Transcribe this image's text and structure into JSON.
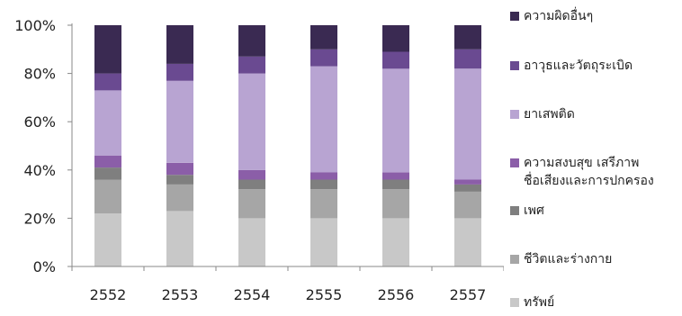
{
  "chart_data": {
    "type": "bar",
    "stacked": true,
    "percent": true,
    "categories": [
      "2552",
      "2553",
      "2554",
      "2555",
      "2556",
      "2557"
    ],
    "ylim": [
      0,
      100
    ],
    "yticks": [
      "0%",
      "20%",
      "40%",
      "60%",
      "80%",
      "100%"
    ],
    "grid": false,
    "legend_position": "right",
    "series": [
      {
        "name": "ทรัพย์",
        "color": "#c8c8c8",
        "values": [
          22,
          23,
          20,
          20,
          20,
          20
        ]
      },
      {
        "name": "ชีวิตและร่างกาย",
        "color": "#a6a6a6",
        "values": [
          14,
          11,
          12,
          12,
          12,
          11
        ]
      },
      {
        "name": "เพศ",
        "color": "#7f7f7f",
        "values": [
          5,
          4,
          4,
          4,
          4,
          3
        ]
      },
      {
        "name": "ความสงบสุข เสรีภาพ\nชื่อเสียงและการปกครอง",
        "color": "#8b5ea8",
        "values": [
          5,
          5,
          4,
          3,
          3,
          2
        ]
      },
      {
        "name": "ยาเสพติด",
        "color": "#b8a4d2",
        "values": [
          27,
          34,
          40,
          44,
          43,
          46
        ]
      },
      {
        "name": "อาวุธและวัตถุระเบิด",
        "color": "#6a4a91",
        "values": [
          7,
          7,
          7,
          7,
          7,
          8
        ]
      },
      {
        "name": "ความผิดอื่นๆ",
        "color": "#3a2a52",
        "values": [
          20,
          16,
          13,
          10,
          11,
          10
        ]
      }
    ]
  }
}
